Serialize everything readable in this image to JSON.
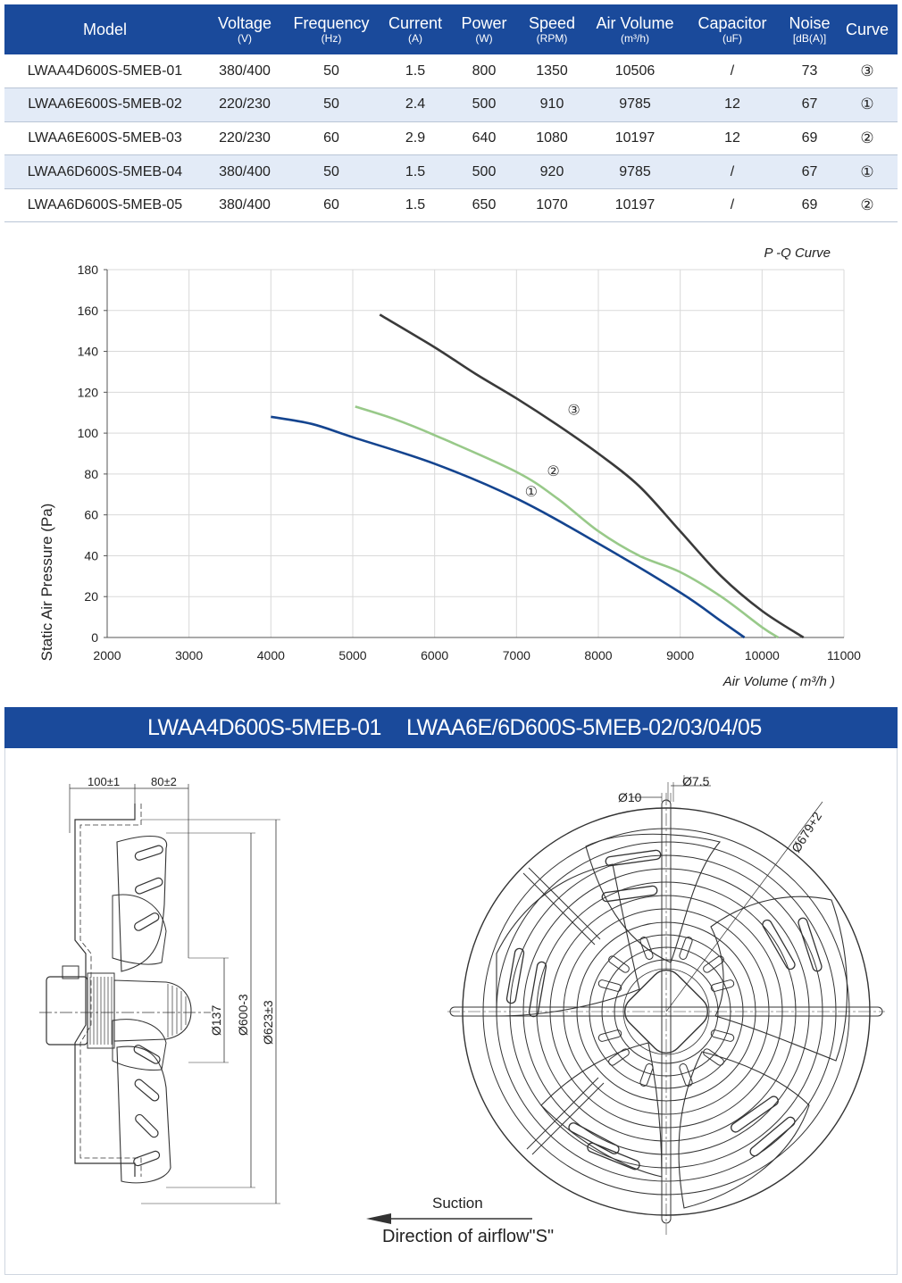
{
  "table": {
    "headers": [
      {
        "label": "Model",
        "unit": ""
      },
      {
        "label": "Voltage",
        "unit": "(V)"
      },
      {
        "label": "Frequency",
        "unit": "(Hz)"
      },
      {
        "label": "Current",
        "unit": "(A)"
      },
      {
        "label": "Power",
        "unit": "(W)"
      },
      {
        "label": "Speed",
        "unit": "(RPM)"
      },
      {
        "label": "Air Volume",
        "unit": "(m³/h)"
      },
      {
        "label": "Capacitor",
        "unit": "(uF)"
      },
      {
        "label": "Noise",
        "unit": "[dB(A)]"
      },
      {
        "label": "Curve",
        "unit": ""
      }
    ],
    "rows": [
      [
        "LWAA4D600S-5MEB-01",
        "380/400",
        "50",
        "1.5",
        "800",
        "1350",
        "10506",
        "/",
        "73",
        "③"
      ],
      [
        "LWAA6E600S-5MEB-02",
        "220/230",
        "50",
        "2.4",
        "500",
        "910",
        "9785",
        "12",
        "67",
        "①"
      ],
      [
        "LWAA6E600S-5MEB-03",
        "220/230",
        "60",
        "2.9",
        "640",
        "1080",
        "10197",
        "12",
        "69",
        "②"
      ],
      [
        "LWAA6D600S-5MEB-04",
        "380/400",
        "50",
        "1.5",
        "500",
        "920",
        "9785",
        "/",
        "67",
        "①"
      ],
      [
        "LWAA6D600S-5MEB-05",
        "380/400",
        "60",
        "1.5",
        "650",
        "1070",
        "10197",
        "/",
        "69",
        "②"
      ]
    ]
  },
  "chart_data": {
    "type": "line",
    "title": "P -Q Curve",
    "xlabel": "Air Volume ( m³/h )",
    "ylabel": "Static Air Pressure  (Pa)",
    "xlim": [
      2000,
      11000
    ],
    "ylim": [
      0,
      180
    ],
    "xticks": [
      2000,
      3000,
      4000,
      5000,
      6000,
      7000,
      8000,
      9000,
      10000,
      11000
    ],
    "yticks": [
      0,
      20,
      40,
      60,
      80,
      100,
      120,
      140,
      160,
      180
    ],
    "grid": true,
    "series": [
      {
        "name": "①",
        "color": "#14448f",
        "points": [
          [
            4000,
            108
          ],
          [
            4500,
            104.5
          ],
          [
            5000,
            98
          ],
          [
            6000,
            85
          ],
          [
            7000,
            68
          ],
          [
            8000,
            46
          ],
          [
            9000,
            22
          ],
          [
            9500,
            8
          ],
          [
            9785,
            0
          ]
        ]
      },
      {
        "name": "②",
        "color": "#98c989",
        "points": [
          [
            5030,
            113
          ],
          [
            5500,
            107
          ],
          [
            6000,
            99
          ],
          [
            7000,
            81
          ],
          [
            7500,
            68
          ],
          [
            8000,
            52
          ],
          [
            8500,
            40
          ],
          [
            9000,
            32
          ],
          [
            9500,
            20
          ],
          [
            10000,
            5
          ],
          [
            10197,
            0
          ]
        ]
      },
      {
        "name": "③",
        "color": "#3a3a3a",
        "points": [
          [
            5330,
            158
          ],
          [
            6000,
            142
          ],
          [
            6500,
            129
          ],
          [
            7000,
            117
          ],
          [
            7500,
            104
          ],
          [
            8000,
            90
          ],
          [
            8500,
            74
          ],
          [
            9000,
            52
          ],
          [
            9500,
            30
          ],
          [
            10000,
            13
          ],
          [
            10506,
            0
          ]
        ]
      }
    ],
    "labels": [
      {
        "text": "③",
        "x": 7700,
        "y": 109
      },
      {
        "text": "②",
        "x": 7450,
        "y": 79
      },
      {
        "text": "①",
        "x": 7180,
        "y": 69
      }
    ]
  },
  "banner": {
    "left_model": "LWAA4D600S-5MEB-01",
    "right_model": "LWAA6E/6D600S-5MEB-02/03/04/05"
  },
  "drawing": {
    "dim_100": "100±1",
    "dim_80": "80±2",
    "dim_137": "Ø137",
    "dim_600": "Ø600-3",
    "dim_623": "Ø623±3",
    "dim_10": "Ø10",
    "dim_75": "Ø7.5",
    "dim_679": "Ø679+2",
    "suction": "Suction",
    "airflow": "Direction of airflow\"S\""
  }
}
